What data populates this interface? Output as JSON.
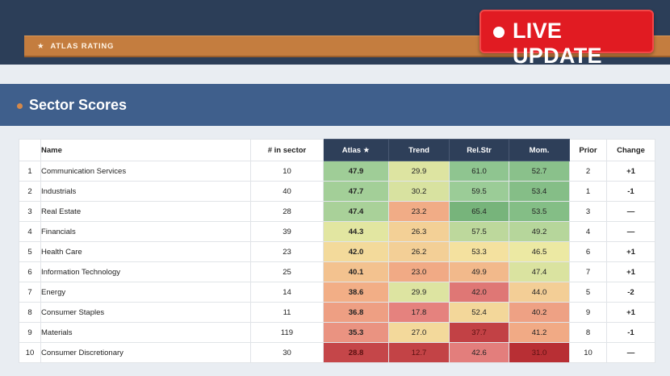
{
  "banner": {
    "rating_label": "ATLAS RATING",
    "star": "★"
  },
  "live_badge": {
    "label": "LIVE UPDATE"
  },
  "section": {
    "title": "Sector Scores"
  },
  "table": {
    "headers": {
      "rank": "",
      "name": "Name",
      "count": "# in sector",
      "atlas": "Atlas ★",
      "trend": "Trend",
      "relstr": "Rel.Str",
      "mom": "Mom.",
      "prior": "Prior",
      "change": "Change"
    },
    "rows": [
      {
        "rank": "1",
        "name": "Communication Services",
        "count": "10",
        "atlas": "47.9",
        "trend": "29.9",
        "relstr": "61.0",
        "mom": "52.7",
        "prior": "2",
        "change": "+1"
      },
      {
        "rank": "2",
        "name": "Industrials",
        "count": "40",
        "atlas": "47.7",
        "trend": "30.2",
        "relstr": "59.5",
        "mom": "53.4",
        "prior": "1",
        "change": "-1"
      },
      {
        "rank": "3",
        "name": "Real Estate",
        "count": "28",
        "atlas": "47.4",
        "trend": "23.2",
        "relstr": "65.4",
        "mom": "53.5",
        "prior": "3",
        "change": "—"
      },
      {
        "rank": "4",
        "name": "Financials",
        "count": "39",
        "atlas": "44.3",
        "trend": "26.3",
        "relstr": "57.5",
        "mom": "49.2",
        "prior": "4",
        "change": "—"
      },
      {
        "rank": "5",
        "name": "Health Care",
        "count": "23",
        "atlas": "42.0",
        "trend": "26.2",
        "relstr": "53.3",
        "mom": "46.5",
        "prior": "6",
        "change": "+1"
      },
      {
        "rank": "6",
        "name": "Information Technology",
        "count": "25",
        "atlas": "40.1",
        "trend": "23.0",
        "relstr": "49.9",
        "mom": "47.4",
        "prior": "7",
        "change": "+1"
      },
      {
        "rank": "7",
        "name": "Energy",
        "count": "14",
        "atlas": "38.6",
        "trend": "29.9",
        "relstr": "42.0",
        "mom": "44.0",
        "prior": "5",
        "change": "-2"
      },
      {
        "rank": "8",
        "name": "Consumer Staples",
        "count": "11",
        "atlas": "36.8",
        "trend": "17.8",
        "relstr": "52.4",
        "mom": "40.2",
        "prior": "9",
        "change": "+1"
      },
      {
        "rank": "9",
        "name": "Materials",
        "count": "119",
        "atlas": "35.3",
        "trend": "27.0",
        "relstr": "37.7",
        "mom": "41.2",
        "prior": "8",
        "change": "-1"
      },
      {
        "rank": "10",
        "name": "Consumer Discretionary",
        "count": "30",
        "atlas": "28.8",
        "trend": "12.7",
        "relstr": "42.6",
        "mom": "31.0",
        "prior": "10",
        "change": "—"
      }
    ]
  },
  "colors": {
    "header_dark": "#2e3f59",
    "top_band": "#2c3e58",
    "accent_orange": "#c47d3f",
    "section_blue": "#3f5f8c",
    "live_red": "#e11b22",
    "change_positive": "#2e8b2e",
    "change_negative": "#c4272c"
  }
}
